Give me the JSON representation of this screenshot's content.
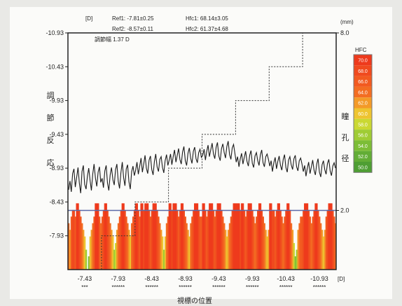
{
  "chart_data": {
    "type": "bar",
    "header": {
      "left_unit": "[D]",
      "right_unit": "(mm)",
      "ref1": "Ref1: -7.81±0.25",
      "ref2": "Ref2: -8.57±0.11",
      "hfc1": "Hfc1: 68.14±3.05",
      "hfc2": "Hfc2: 61.37±4.68",
      "amplitude": "調節幅 1.37 D"
    },
    "ylabel_left": [
      "調",
      "節",
      "反",
      "応"
    ],
    "ylabel_right": [
      "瞳",
      "孔",
      "径"
    ],
    "xlabel": "視標の位置",
    "x_unit": "[D]",
    "x_ticks": [
      "-7.43",
      "-7.93",
      "-8.43",
      "-8.93",
      "-9.43",
      "-9.93",
      "-10.43",
      "-10.93"
    ],
    "x_tick_marks": [
      "***",
      "******",
      "******",
      "******",
      "******",
      "******",
      "******",
      "******"
    ],
    "y_left_ticks": [
      "-10.93",
      "-10.43",
      "-9.93",
      "-9.43",
      "-8.93",
      "-8.43",
      "-7.93"
    ],
    "y_left_range": [
      -10.93,
      -7.43
    ],
    "y_right_ticks": [
      "8.0",
      "2.0"
    ],
    "y_right_range": [
      0,
      8
    ],
    "legend": {
      "title": "HFC",
      "entries": [
        "70.0",
        "68.0",
        "66.0",
        "64.0",
        "62.0",
        "60.0",
        "58.0",
        "56.0",
        "54.0",
        "52.0",
        "50.0"
      ],
      "colors": [
        "#ee3a1c",
        "#f04a1e",
        "#f25a20",
        "#f36d22",
        "#f39a28",
        "#eec430",
        "#cad832",
        "#9fcc34",
        "#7cbd36",
        "#62ad36",
        "#4e9e33"
      ]
    },
    "target_steps": [
      -7.43,
      -7.93,
      -8.43,
      -8.93,
      -9.43,
      -9.93,
      -10.43,
      -10.93
    ],
    "hfc_columns": [
      {
        "x": -7.43,
        "hfc": [
          64,
          62,
          66,
          68,
          68,
          66,
          70,
          70,
          68,
          66,
          64,
          62,
          60,
          56,
          50,
          54,
          60,
          62,
          64,
          66,
          70,
          70,
          70,
          66,
          64
        ]
      },
      {
        "x": -7.93,
        "hfc": [
          66,
          68,
          70,
          70,
          68,
          66,
          64,
          62,
          60,
          56,
          58,
          62,
          64,
          66,
          68,
          70,
          70,
          68,
          66,
          64,
          62,
          60,
          64,
          66,
          68
        ]
      },
      {
        "x": -8.43,
        "hfc": [
          70,
          70,
          68,
          66,
          70,
          70,
          68,
          70,
          70,
          70,
          68,
          66,
          68,
          70,
          70,
          70,
          68,
          66,
          64,
          62,
          60,
          56,
          60,
          64,
          66
        ]
      },
      {
        "x": -8.93,
        "hfc": [
          70,
          70,
          68,
          70,
          70,
          70,
          68,
          66,
          68,
          70,
          70,
          68,
          66,
          64,
          62,
          60,
          64,
          66,
          68,
          70,
          70,
          70,
          68,
          66,
          66
        ]
      },
      {
        "x": -9.43,
        "hfc": [
          70,
          70,
          68,
          66,
          68,
          70,
          70,
          70,
          68,
          66,
          68,
          70,
          70,
          70,
          68,
          66,
          64,
          62,
          60,
          62,
          64,
          66,
          68,
          70,
          70
        ]
      },
      {
        "x": -9.93,
        "hfc": [
          70,
          70,
          70,
          68,
          70,
          70,
          68,
          66,
          68,
          70,
          70,
          70,
          68,
          66,
          64,
          66,
          68,
          70,
          70,
          68,
          66,
          64,
          62,
          60,
          62
        ]
      },
      {
        "x": -10.43,
        "hfc": [
          70,
          70,
          68,
          68,
          66,
          68,
          70,
          70,
          68,
          66,
          64,
          66,
          68,
          70,
          70,
          68,
          64,
          62,
          58,
          54,
          56,
          62,
          64,
          66,
          66
        ]
      },
      {
        "x": -10.93,
        "hfc": [
          68,
          70,
          70,
          70,
          68,
          66,
          64,
          66,
          68,
          70,
          70,
          68,
          66,
          64,
          62,
          60,
          62,
          66,
          68,
          70,
          70,
          70,
          68,
          66,
          64
        ]
      }
    ],
    "hfc_bar_scale": [
      50,
      70
    ],
    "pupil_line_value": 2.0,
    "accommodation_series": [
      {
        "x": -7.43,
        "y": [
          -8.61,
          -8.74,
          -8.58,
          -8.85,
          -8.92,
          -8.65,
          -8.79,
          -8.94,
          -8.71,
          -8.56,
          -8.88,
          -8.97,
          -8.69,
          -8.62,
          -8.81,
          -8.93,
          -8.75,
          -8.6,
          -8.84,
          -8.99,
          -8.78,
          -8.66,
          -8.87,
          -8.95,
          -8.72
        ]
      },
      {
        "x": -7.93,
        "y": [
          -8.78,
          -8.64,
          -8.89,
          -8.97,
          -8.71,
          -8.6,
          -8.83,
          -8.94,
          -8.76,
          -8.68,
          -8.91,
          -8.99,
          -8.74,
          -8.63,
          -8.86,
          -9.02,
          -8.79,
          -8.67,
          -8.92,
          -8.98,
          -8.73,
          -8.62,
          -8.88,
          -8.96,
          -8.82
        ]
      },
      {
        "x": -8.43,
        "y": [
          -8.9,
          -9.02,
          -8.84,
          -8.96,
          -9.08,
          -8.87,
          -8.99,
          -9.12,
          -8.93,
          -8.85,
          -9.05,
          -9.11,
          -8.91,
          -8.83,
          -9.03,
          -9.14,
          -8.95,
          -8.88,
          -9.06,
          -9.1,
          -8.94,
          -8.86,
          -9.04,
          -9.13,
          -8.97
        ]
      },
      {
        "x": -8.93,
        "y": [
          -9.05,
          -9.14,
          -8.98,
          -9.1,
          -9.2,
          -9.02,
          -9.12,
          -9.22,
          -9.06,
          -8.99,
          -9.17,
          -9.25,
          -9.04,
          -8.97,
          -9.15,
          -9.23,
          -9.08,
          -9.0,
          -9.18,
          -9.24,
          -9.07,
          -9.01,
          -9.16,
          -9.21,
          -9.09
        ]
      },
      {
        "x": -9.43,
        "y": [
          -9.12,
          -9.21,
          -9.05,
          -9.18,
          -9.27,
          -9.1,
          -9.2,
          -9.3,
          -9.14,
          -9.07,
          -9.24,
          -9.31,
          -9.11,
          -9.04,
          -9.22,
          -9.29,
          -9.16,
          -9.08,
          -9.25,
          -9.33,
          -9.13,
          -9.06,
          -9.23,
          -9.28,
          -9.15
        ]
      },
      {
        "x": -9.93,
        "y": [
          -9.02,
          -9.1,
          -8.95,
          -9.07,
          -9.15,
          -8.99,
          -9.09,
          -9.18,
          -9.03,
          -8.96,
          -9.12,
          -9.19,
          -9.0,
          -8.94,
          -9.11,
          -9.16,
          -9.04,
          -8.97,
          -9.13,
          -9.2,
          -9.01,
          -8.95,
          -9.1,
          -9.14,
          -9.06
        ]
      },
      {
        "x": -10.43,
        "y": [
          -8.96,
          -9.04,
          -8.88,
          -9.01,
          -9.09,
          -8.92,
          -9.03,
          -9.11,
          -8.97,
          -8.9,
          -9.06,
          -9.13,
          -8.94,
          -8.87,
          -9.05,
          -9.1,
          -8.98,
          -8.91,
          -9.07,
          -9.12,
          -8.95,
          -8.89,
          -9.04,
          -9.08,
          -8.99
        ]
      },
      {
        "x": -10.93,
        "y": [
          -8.88,
          -8.97,
          -8.81,
          -8.93,
          -9.02,
          -8.85,
          -8.95,
          -9.05,
          -8.9,
          -8.83,
          -8.99,
          -9.07,
          -8.87,
          -8.8,
          -8.98,
          -9.04,
          -8.91,
          -8.84,
          -9.0,
          -9.06,
          -8.89,
          -8.82,
          -8.96,
          -9.01,
          -8.93
        ]
      }
    ]
  }
}
